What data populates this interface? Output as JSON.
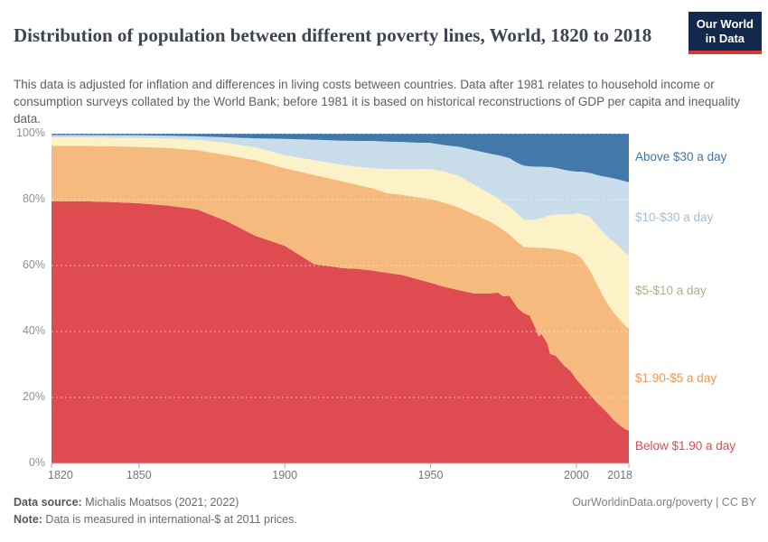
{
  "header": {
    "title": "Distribution of population between different poverty lines, World, 1820 to 2018",
    "subtitle": "This data is adjusted for inflation and differences in living costs between countries. Data after 1981 relates to household income or consumption surveys collated by the World Bank; before 1981 it is based on historical reconstructions of GDP per capita and inequality data.",
    "logo": {
      "line1": "Our World",
      "line2": "in Data",
      "bg_color": "#12294d",
      "accent_color": "#d6392f"
    }
  },
  "chart_data": {
    "type": "area",
    "stacked": true,
    "unit": "%",
    "xlim": [
      1820,
      2018
    ],
    "ylim": [
      0,
      100
    ],
    "grid": true,
    "legend_position": "right",
    "x_ticks": [
      1820,
      1850,
      1900,
      1950,
      2000,
      2018
    ],
    "y_ticks": [
      0,
      20,
      40,
      60,
      80,
      100
    ],
    "y_tick_suffix": "%",
    "x": [
      1820,
      1830,
      1840,
      1850,
      1860,
      1870,
      1880,
      1890,
      1900,
      1910,
      1920,
      1925,
      1930,
      1935,
      1940,
      1945,
      1950,
      1955,
      1960,
      1965,
      1970,
      1973,
      1975,
      1977,
      1980,
      1982,
      1984,
      1986,
      1987,
      1988,
      1990,
      1991,
      1993,
      1995,
      1996,
      1998,
      2000,
      2002,
      2004,
      2005,
      2007,
      2009,
      2011,
      2013,
      2015,
      2017,
      2018
    ],
    "series": [
      {
        "name": "Below $1.90 a day",
        "color": "#de4c51",
        "label_color": "#dd4a50",
        "values": [
          79.5,
          79.5,
          79.3,
          78.9,
          78.2,
          77.0,
          73.5,
          69.0,
          66.0,
          60.5,
          59.2,
          59.0,
          58.5,
          57.8,
          57.2,
          56.0,
          54.8,
          53.5,
          52.5,
          51.5,
          51.5,
          51.8,
          50.6,
          50.9,
          47.0,
          45.6,
          44.8,
          41.0,
          38.5,
          39.3,
          36.5,
          33.2,
          32.6,
          30.5,
          29.5,
          28.0,
          25.5,
          23.5,
          21.5,
          20.5,
          18.5,
          16.8,
          15.0,
          13.0,
          11.5,
          10.2,
          10.0
        ]
      },
      {
        "name": "$1.90-$5 a day",
        "color": "#f7ba7e",
        "label_color": "#e89858",
        "values": [
          16.8,
          16.8,
          16.9,
          17.1,
          17.5,
          18.0,
          20.0,
          23.0,
          23.5,
          27.0,
          26.3,
          25.5,
          25.0,
          24.2,
          24.3,
          24.8,
          25.4,
          25.5,
          25.0,
          24.0,
          22.0,
          20.2,
          20.1,
          18.6,
          20.0,
          20.1,
          20.8,
          24.5,
          26.9,
          26.1,
          28.8,
          32.0,
          32.4,
          34.3,
          35.0,
          36.0,
          38.0,
          38.5,
          38.0,
          37.5,
          36.0,
          34.2,
          33.0,
          32.5,
          32.0,
          31.3,
          31.0
        ]
      },
      {
        "name": "$5-$10 a day",
        "color": "#fcf2c7",
        "label_color": "#b5ae84",
        "values": [
          2.6,
          2.6,
          2.6,
          2.7,
          2.8,
          3.2,
          3.7,
          3.8,
          4.0,
          4.5,
          5.0,
          5.5,
          6.0,
          7.3,
          7.7,
          8.4,
          9.1,
          9.5,
          9.5,
          9.0,
          8.5,
          8.5,
          8.2,
          8.5,
          8.5,
          8.2,
          8.2,
          8.5,
          8.8,
          8.9,
          9.7,
          10.1,
          10.5,
          10.8,
          11.0,
          11.6,
          12.4,
          13.6,
          15.5,
          16.5,
          17.8,
          19.2,
          20.5,
          21.5,
          22.0,
          22.3,
          22.3
        ]
      },
      {
        "name": "$10-$30 a day",
        "color": "#c8dcea",
        "label_color": "#a5bed1",
        "values": [
          0.7,
          0.7,
          0.7,
          0.8,
          0.9,
          1.0,
          1.7,
          2.8,
          4.9,
          6.2,
          7.4,
          7.8,
          8.3,
          8.3,
          8.3,
          8.1,
          7.9,
          8.0,
          9.0,
          10.5,
          12.0,
          13.0,
          14.2,
          14.6,
          15.5,
          16.4,
          16.3,
          16.0,
          15.8,
          15.7,
          14.9,
          14.6,
          14.1,
          13.6,
          13.5,
          13.1,
          12.6,
          12.9,
          13.2,
          13.5,
          15.2,
          16.9,
          18.3,
          19.4,
          20.5,
          21.7,
          22.0
        ]
      },
      {
        "name": "Above $30 a day",
        "color": "#4378ab",
        "label_color": "#3d76a8",
        "values": [
          0.4,
          0.4,
          0.5,
          0.5,
          0.6,
          0.8,
          1.1,
          1.4,
          1.6,
          1.8,
          2.1,
          2.2,
          2.2,
          2.4,
          2.5,
          2.7,
          2.8,
          3.5,
          4.0,
          5.0,
          6.0,
          6.5,
          6.9,
          7.4,
          9.0,
          9.7,
          9.9,
          10.0,
          10.0,
          10.0,
          10.1,
          10.1,
          10.4,
          10.8,
          11.0,
          11.3,
          11.5,
          11.5,
          11.8,
          12.0,
          12.5,
          12.9,
          13.2,
          13.6,
          14.0,
          14.5,
          14.7
        ]
      }
    ]
  },
  "footer": {
    "source_label": "Data source:",
    "source_text": " Michalis Moatsos (2021; 2022)",
    "note_label": "Note:",
    "note_text": " Data is measured in international-$ at 2011 prices.",
    "credit": "OurWorldinData.org/poverty | CC BY"
  }
}
